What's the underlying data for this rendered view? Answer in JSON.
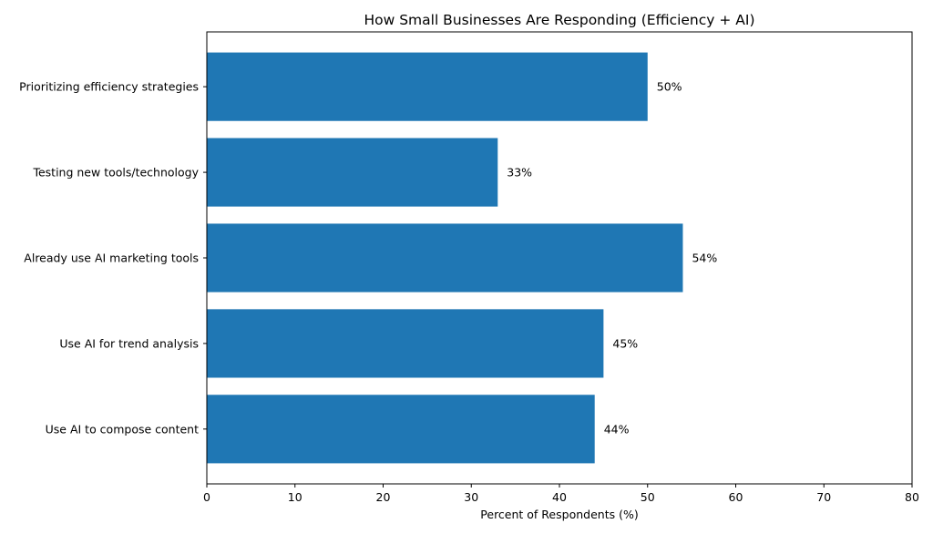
{
  "chart_data": {
    "type": "bar",
    "orientation": "horizontal",
    "title": "How Small Businesses Are Responding (Efficiency + AI)",
    "xlabel": "Percent of Respondents (%)",
    "ylabel": "",
    "categories": [
      "Prioritizing efficiency strategies",
      "Testing new tools/technology",
      "Already use AI marketing tools",
      "Use AI for trend analysis",
      "Use AI to compose content"
    ],
    "values": [
      50,
      33,
      54,
      45,
      44
    ],
    "value_labels": [
      "50%",
      "33%",
      "54%",
      "45%",
      "44%"
    ],
    "xlim": [
      0,
      80
    ],
    "xticks": [
      0,
      10,
      20,
      30,
      40,
      50,
      60,
      70,
      80
    ],
    "xtick_labels": [
      "0",
      "10",
      "20",
      "30",
      "40",
      "50",
      "60",
      "70",
      "80"
    ],
    "bar_color": "#1f77b4",
    "grid": false
  }
}
